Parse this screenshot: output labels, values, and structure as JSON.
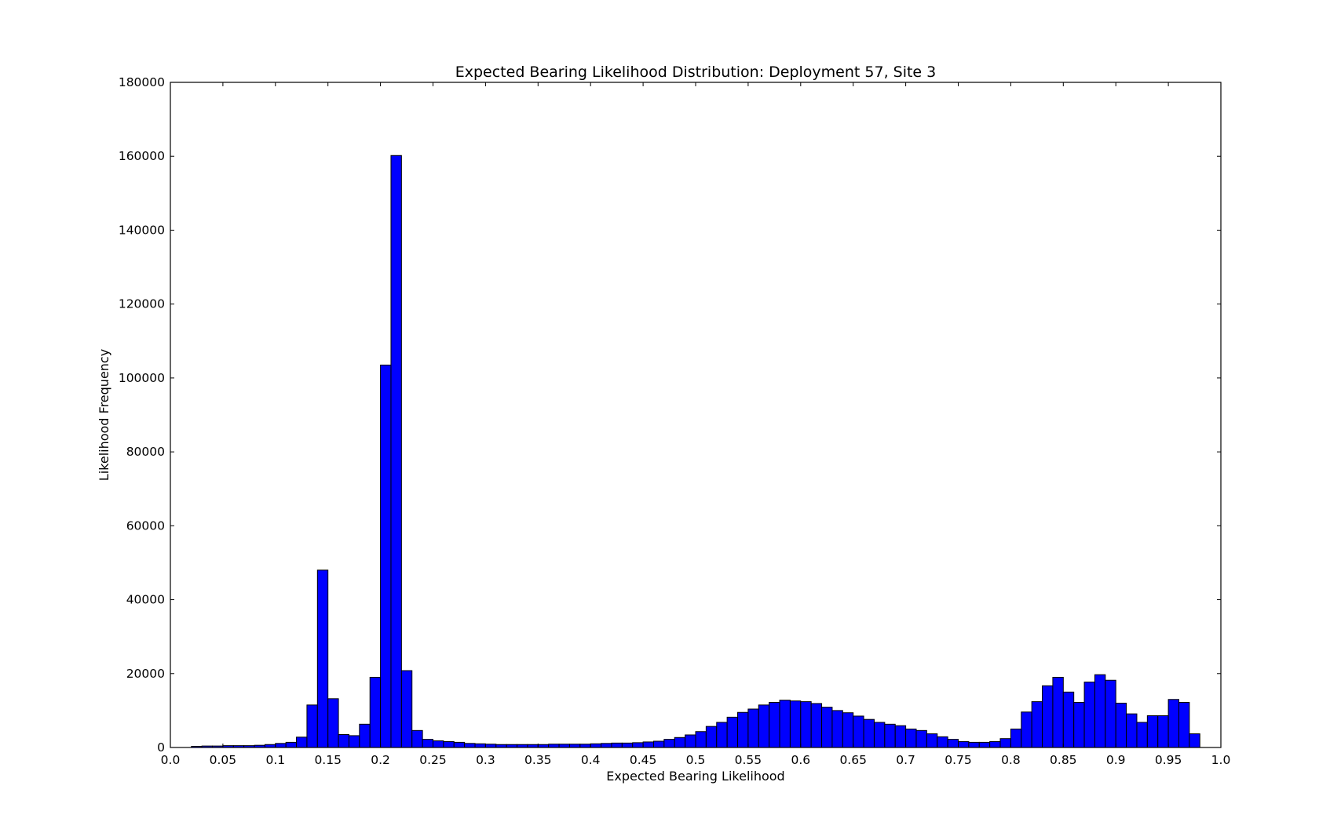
{
  "chart_data": {
    "type": "bar",
    "title": "Expected Bearing Likelihood Distribution: Deployment 57, Site 3",
    "xlabel": "Expected Bearing Likelihood",
    "ylabel": "Likelihood Frequency",
    "xlim": [
      0.0,
      1.0
    ],
    "ylim": [
      0,
      180000
    ],
    "xticks": [
      "0.0",
      "0.05",
      "0.1",
      "0.15",
      "0.2",
      "0.25",
      "0.3",
      "0.35",
      "0.4",
      "0.45",
      "0.5",
      "0.55",
      "0.6",
      "0.65",
      "0.7",
      "0.75",
      "0.8",
      "0.85",
      "0.9",
      "0.95",
      "1.0"
    ],
    "yticks": [
      "0",
      "20000",
      "40000",
      "60000",
      "80000",
      "100000",
      "120000",
      "140000",
      "160000",
      "180000"
    ],
    "bar_color": "#0000ff",
    "bar_edge_color": "#000000",
    "grid": false,
    "bins": {
      "start": 0.02,
      "width": 0.01,
      "values": [
        300,
        400,
        400,
        500,
        500,
        500,
        600,
        800,
        1100,
        1400,
        2800,
        11500,
        48000,
        13200,
        3500,
        3200,
        6300,
        19000,
        103500,
        160200,
        20800,
        4600,
        2200,
        1800,
        1600,
        1400,
        1100,
        1000,
        900,
        800,
        800,
        800,
        800,
        800,
        900,
        900,
        900,
        900,
        1000,
        1100,
        1200,
        1200,
        1300,
        1500,
        1700,
        2200,
        2700,
        3400,
        4300,
        5700,
        6800,
        8200,
        9500,
        10400,
        11500,
        12200,
        12800,
        12600,
        12400,
        11900,
        10900,
        10000,
        9400,
        8500,
        7600,
        6800,
        6300,
        5900,
        5000,
        4600,
        3700,
        2900,
        2200,
        1600,
        1400,
        1400,
        1600,
        2400,
        5000,
        9600,
        12400,
        16700,
        19000,
        15000,
        12200,
        17700,
        19700,
        18200,
        12000,
        9100,
        6800,
        8600,
        8600,
        13000,
        12200,
        3700
      ]
    }
  }
}
